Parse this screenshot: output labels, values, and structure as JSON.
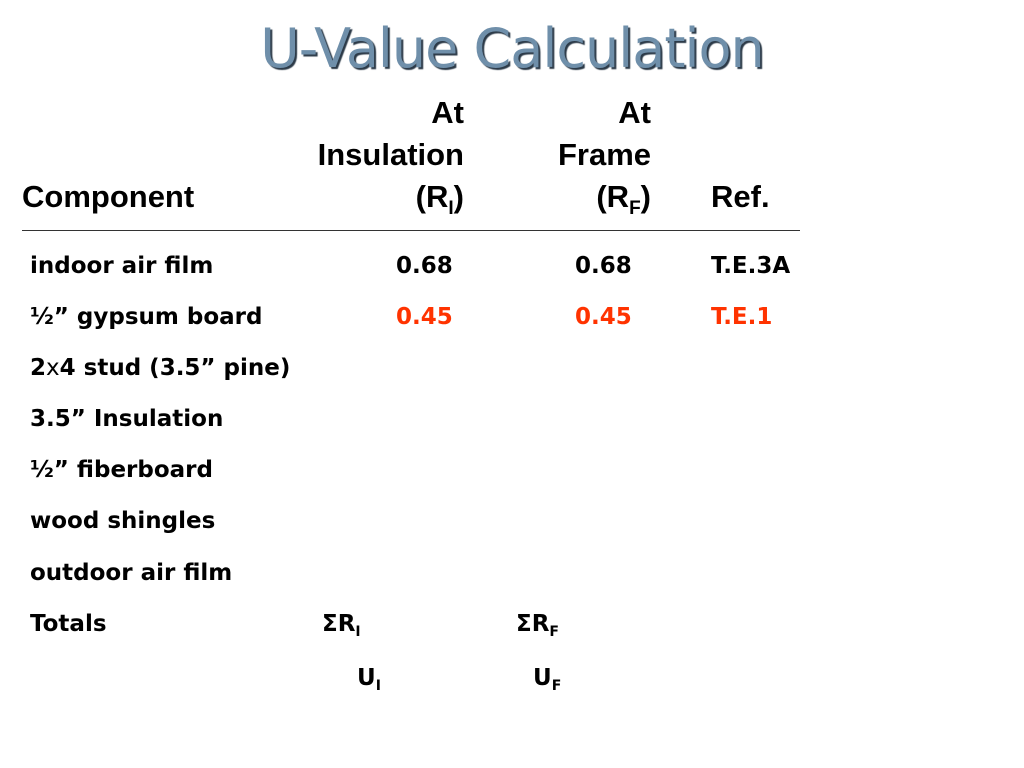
{
  "slide": {
    "title": "U-Value Calculation"
  },
  "header": {
    "component": "Component",
    "insulation_line1": "At",
    "insulation_line2": "Insulation",
    "insulation_symbol_open": "(R",
    "insulation_symbol_sub": "I",
    "insulation_symbol_close": ")",
    "frame_line1": "At",
    "frame_line2": "Frame",
    "frame_symbol_open": "(R",
    "frame_symbol_sub": "F",
    "frame_symbol_close": ")",
    "ref": "Ref."
  },
  "rows": [
    {
      "component": "indoor air film",
      "r_insulation": "0.68",
      "r_frame": "0.68",
      "ref": "T.E.3A"
    },
    {
      "component": "½” gypsum board",
      "r_insulation": "0.45",
      "r_frame": "0.45",
      "ref": "T.E.1"
    },
    {
      "component_pre": "2",
      "component_x": "x",
      "component_post": "4 stud (3.5” pine)"
    },
    {
      "component": "3.5” Insulation"
    },
    {
      "component": "½” fiberboard"
    },
    {
      "component": "wood shingles"
    },
    {
      "component": "outdoor air film"
    }
  ],
  "totals": {
    "label": "Totals",
    "sum_insulation_main": "ΣR",
    "sum_insulation_sub": "I",
    "sum_frame_main": "ΣR",
    "sum_frame_sub": "F",
    "u_insulation_main": "U",
    "u_insulation_sub": "I",
    "u_frame_main": "U",
    "u_frame_sub": "F"
  },
  "colors": {
    "title": "#6f8faa",
    "highlight": "#ff3300"
  }
}
